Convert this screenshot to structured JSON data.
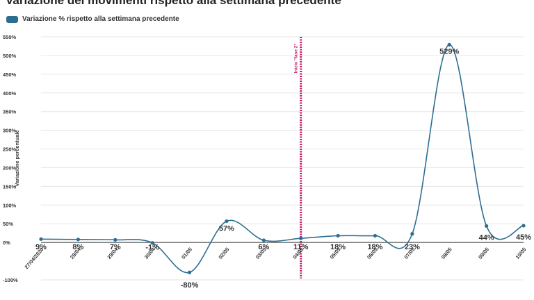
{
  "title": "Variazione dei movimenti rispetto alla settimana precedente",
  "legend": {
    "label": "Variazione % rispetto alla settimana precedente"
  },
  "colors": {
    "series": "#2c6e91",
    "annotation": "#c0186b",
    "grid": "#e6e6e6"
  },
  "chart_data": {
    "type": "line",
    "ylabel": "Variazione percentuale",
    "xlabel": "",
    "x": [
      "27/04/2020",
      "28/04",
      "29/04",
      "30/04",
      "01/05",
      "02/05",
      "03/05",
      "04/05",
      "05/05",
      "06/05",
      "07/05",
      "08/05",
      "09/05",
      "10/05"
    ],
    "series": [
      {
        "name": "Variazione % rispetto alla settimana precedente",
        "values": [
          9,
          8,
          7,
          -1,
          -80,
          57,
          6,
          11,
          18,
          18,
          23,
          529,
          44,
          45
        ],
        "labels": [
          "9%",
          "8%",
          "7%",
          "-1%",
          "-80%",
          "57%",
          "6%",
          "11%",
          "18%",
          "18%",
          "23%",
          "529%",
          "44%",
          "45%"
        ]
      }
    ],
    "yticks": [
      "-100%",
      "0%",
      "50%",
      "100%",
      "150%",
      "200%",
      "250%",
      "300%",
      "350%",
      "400%",
      "450%",
      "500%",
      "550%"
    ],
    "ylim": [
      -100,
      550
    ],
    "grid": true,
    "legend_position": "top-left",
    "annotations": [
      {
        "x": "04/05",
        "text": "Inizio \"fase 2\""
      }
    ]
  }
}
